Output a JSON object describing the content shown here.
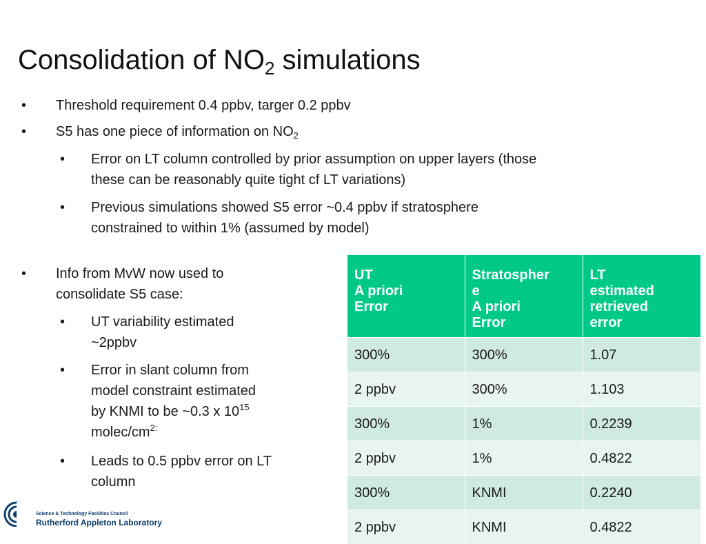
{
  "title": {
    "main": "Consolidation of NO",
    "sub": "2",
    "rest": " simulations"
  },
  "bullets_top": [
    {
      "text": "Threshold requirement 0.4 ppbv, targer 0.2 ppbv"
    },
    {
      "text": "S5 has one piece of information on NO",
      "sub": "2"
    },
    {
      "line1": "Error on LT column controlled by prior assumption on upper layers (those",
      "line2": "these can be reasonably quite tight cf LT variations)"
    },
    {
      "line1": "Previous simulations showed S5 error ~0.4 ppbv if stratosphere",
      "line2": "constrained to within 1% (assumed by model)"
    }
  ],
  "bullets_left": {
    "main": {
      "line1": "Info from MvW now used to",
      "line2": "consolidate S5 case:"
    },
    "sub1": {
      "line1": "UT variability estimated",
      "line2": "~2ppbv"
    },
    "sub2": {
      "line1": "Error in slant column from",
      "line2": "model constraint estimated",
      "line3": "by KNMI to be ~0.3 x 10",
      "line3_sup": "15",
      "line4": "molec/cm",
      "line4_sup": "2:"
    },
    "sub3": {
      "line1": "Leads to 0.5 ppbv error on LT",
      "line2": "column"
    }
  },
  "bullet_symbol": "•",
  "table": {
    "headers": [
      {
        "l1": "UT",
        "l2": "A priori",
        "l3": "Error",
        "l4": ""
      },
      {
        "l1": "Stratospher",
        "l2": "e",
        "l3": "A priori",
        "l4": "Error"
      },
      {
        "l1": "LT",
        "l2": "estimated",
        "l3": "retrieved",
        "l4": "error"
      }
    ],
    "rows": [
      [
        "300%",
        "300%",
        "1.07"
      ],
      [
        "2 ppbv",
        "300%",
        "1.103"
      ],
      [
        "300%",
        "1%",
        "0.2239"
      ],
      [
        "2 ppbv",
        "1%",
        "0.4822"
      ],
      [
        "300%",
        "KNMI",
        "0.2240"
      ],
      [
        "2 ppbv",
        "KNMI",
        "0.4822"
      ]
    ],
    "header_color": "#00c987",
    "row_color_odd": "#cfeade",
    "row_color_even": "#e8f4ee"
  },
  "logo": {
    "org": "Science & Technology Facilities Council",
    "lab": "Rutherford Appleton Laboratory",
    "icon": "stfc-emblem-icon"
  }
}
